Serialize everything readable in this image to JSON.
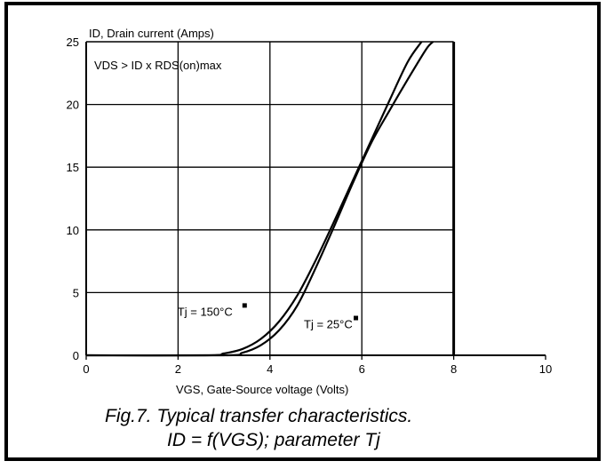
{
  "chart_data": {
    "type": "line",
    "ylabel": "ID, Drain current (Amps)",
    "xlabel": "VGS, Gate-Source voltage (Volts)",
    "condition": "VDS > ID x RDS(on)max",
    "xlim": [
      0,
      10
    ],
    "ylim": [
      0,
      25
    ],
    "x_ticks": [
      "0",
      "2",
      "4",
      "6",
      "8",
      "10"
    ],
    "y_ticks": [
      "0",
      "5",
      "10",
      "15",
      "20",
      "25"
    ],
    "grid": true,
    "series": [
      {
        "name": "Tj = 150°C",
        "x": [
          0,
          2.6,
          3.0,
          3.4,
          3.8,
          4.2,
          4.6,
          5.0,
          5.4,
          5.8,
          6.2,
          6.6,
          7.0,
          7.3
        ],
        "y": [
          0,
          0,
          0.15,
          0.5,
          1.3,
          2.7,
          4.8,
          7.6,
          10.7,
          13.9,
          17.1,
          20.3,
          23.4,
          25
        ]
      },
      {
        "name": "Tj = 25°C",
        "x": [
          0,
          3.0,
          3.4,
          3.8,
          4.2,
          4.6,
          5.0,
          5.4,
          5.8,
          6.2,
          6.6,
          7.0,
          7.4,
          7.55
        ],
        "y": [
          0,
          0,
          0.2,
          0.8,
          2.0,
          4.0,
          7.0,
          10.3,
          13.7,
          16.9,
          19.5,
          22.0,
          24.4,
          25
        ]
      }
    ],
    "annotations": [
      {
        "text": "Tj = 150°C",
        "x": 4.0,
        "y": 3.3
      },
      {
        "text": "Tj = 25°C",
        "x": 5.9,
        "y": 2.3
      }
    ],
    "caption": {
      "line1": "Fig.7.  Typical transfer characteristics.",
      "line2": "ID = f(VGS); parameter Tj"
    }
  },
  "colors": {
    "line": "#000000",
    "grid": "#000000",
    "background": "#ffffff"
  }
}
